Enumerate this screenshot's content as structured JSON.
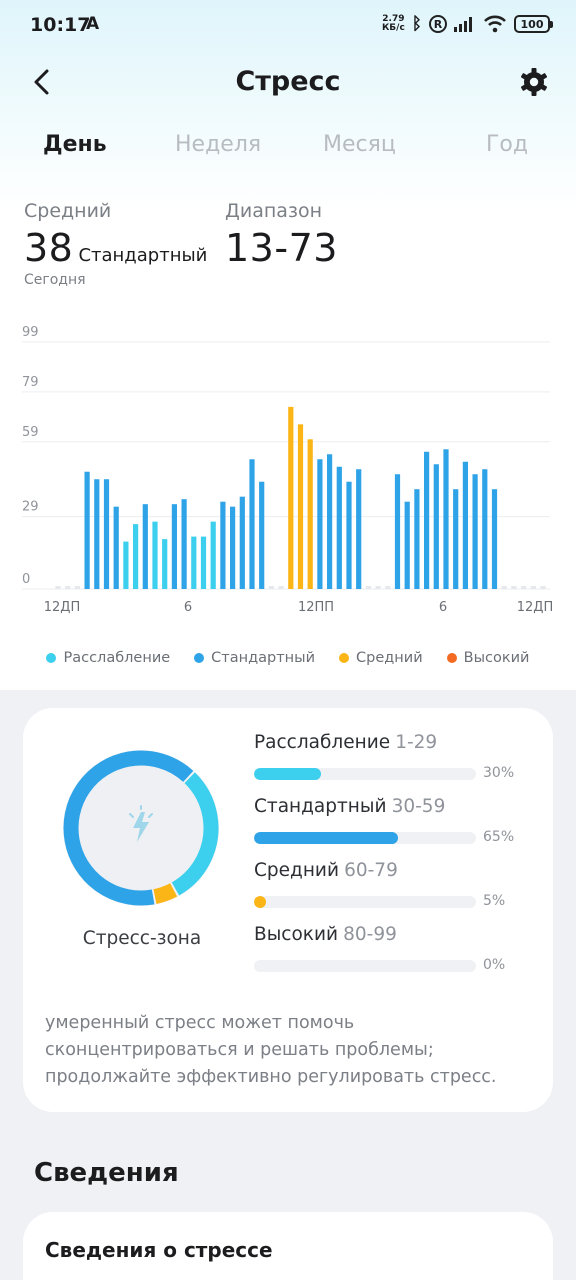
{
  "status_bar": {
    "time": "10:17",
    "notif_icon_text": "A",
    "net_speed_value": "2.79",
    "net_speed_unit": "КБ/с",
    "r_badge": "R",
    "battery": "100"
  },
  "header": {
    "title": "Стресс",
    "back_icon": "chevron-left-icon",
    "settings_icon": "gear-icon"
  },
  "tabs": [
    {
      "label": "День",
      "active": true
    },
    {
      "label": "Неделя",
      "active": false
    },
    {
      "label": "Месяц",
      "active": false
    },
    {
      "label": "Год",
      "active": false
    }
  ],
  "summary": {
    "average_label": "Средний",
    "average_value": "38",
    "average_level": "Стандартный",
    "period": "Сегодня",
    "range_label": "Диапазон",
    "range_value": "13-73"
  },
  "chart_data": {
    "type": "bar",
    "y_ticks": [
      "0",
      "29",
      "59",
      "79",
      "99"
    ],
    "ylim": [
      0,
      99
    ],
    "x_ticks": [
      "12ДП",
      "6",
      "12ПП",
      "6",
      "12ДП"
    ],
    "grid": true,
    "colors": {
      "relax": "#3ccfee",
      "standard": "#2ea3e8",
      "medium": "#fbb516",
      "high": "#f46a22",
      "empty": "#e6e8eb"
    },
    "values": [
      0,
      0,
      0,
      47,
      44,
      44,
      33,
      19,
      26,
      34,
      27,
      20,
      34,
      36,
      21,
      21,
      27,
      35,
      33,
      37,
      52,
      43,
      0,
      0,
      73,
      66,
      60,
      52,
      54,
      49,
      43,
      48,
      0,
      0,
      0,
      46,
      35,
      40,
      55,
      50,
      56,
      40,
      51,
      46,
      48,
      40,
      0,
      0,
      0,
      0,
      0
    ]
  },
  "legend": [
    {
      "label": "Расслабление",
      "color": "#3ccfee"
    },
    {
      "label": "Стандартный",
      "color": "#2ea3e8"
    },
    {
      "label": "Средний",
      "color": "#fbb516"
    },
    {
      "label": "Высокий",
      "color": "#f46a22"
    }
  ],
  "zones": {
    "label": "Стресс-зона",
    "center_icon": "lightning-icon",
    "items": [
      {
        "name": "Расслабление",
        "range": "1-29",
        "percent": "30%",
        "fraction": 0.3,
        "color": "#3ccfee"
      },
      {
        "name": "Стандартный",
        "range": "30-59",
        "percent": "65%",
        "fraction": 0.65,
        "color": "#2ea3e8"
      },
      {
        "name": "Средний",
        "range": "60-79",
        "percent": "5%",
        "fraction": 0.05,
        "color": "#fbb516"
      },
      {
        "name": "Высокий",
        "range": "80-99",
        "percent": "0%",
        "fraction": 0.0,
        "color": "#f46a22"
      }
    ],
    "note": "умеренный стресс может помочь сконцентрироваться и решать проблемы; продолжайте эффективно регулировать стресс."
  },
  "details": {
    "section_title": "Сведения",
    "card_title": "Сведения о стрессе"
  }
}
